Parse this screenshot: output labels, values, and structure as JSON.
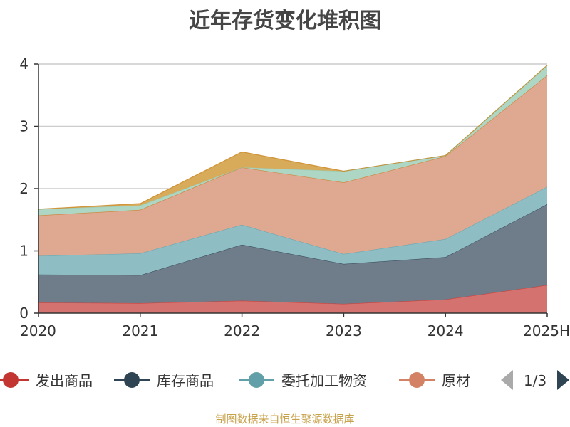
{
  "chart_data": {
    "type": "area",
    "stacked": true,
    "title": "近年存货变化堆积图",
    "ylabel": "",
    "xlabel": "",
    "categories": [
      "2020",
      "2021",
      "2022",
      "2023",
      "2024",
      "2025H"
    ],
    "y_ticks": [
      "0",
      "1",
      "2",
      "3",
      "4"
    ],
    "ylim": [
      0,
      4
    ],
    "grid": true,
    "legend_position": "bottom",
    "series": [
      {
        "name": "发出商品",
        "color": "#c23531",
        "fill": "#d4726f",
        "values": [
          0.17,
          0.16,
          0.2,
          0.15,
          0.22,
          0.45
        ]
      },
      {
        "name": "库存商品",
        "color": "#2f4554",
        "fill": "#6e7d89",
        "values": [
          0.45,
          0.45,
          0.9,
          0.64,
          0.68,
          1.3
        ]
      },
      {
        "name": "委托加工物资",
        "color": "#61a0a8",
        "fill": "#8fbdc4",
        "values": [
          0.3,
          0.35,
          0.32,
          0.16,
          0.29,
          0.28
        ]
      },
      {
        "name": "原材料",
        "color": "#d48265",
        "fill": "#dfa891",
        "values": [
          0.65,
          0.7,
          0.92,
          1.15,
          1.33,
          1.79
        ]
      },
      {
        "values": [
          0.0,
          0.0,
          0.0,
          0.0,
          0.0,
          0.0
        ],
        "color": "#c8862a",
        "fill": "#d4a555"
      },
      {
        "values": [
          0.1,
          0.07,
          0.0,
          0.18,
          0.01,
          0.16
        ],
        "color": "#91c7ae",
        "fill": "#aed6c4"
      },
      {
        "values": [
          0.0,
          0.03,
          0.25,
          0.0,
          0.0,
          0.0
        ],
        "color": "#ca8622",
        "fill": "#d7ab5a"
      }
    ],
    "legend_visible": [
      "发出商品",
      "库存商品",
      "委托加工物资",
      "原材料"
    ],
    "legend_truncated_label": "原材",
    "legend_page": "1/3"
  },
  "footer": {
    "source": "制图数据来自恒生聚源数据库"
  }
}
